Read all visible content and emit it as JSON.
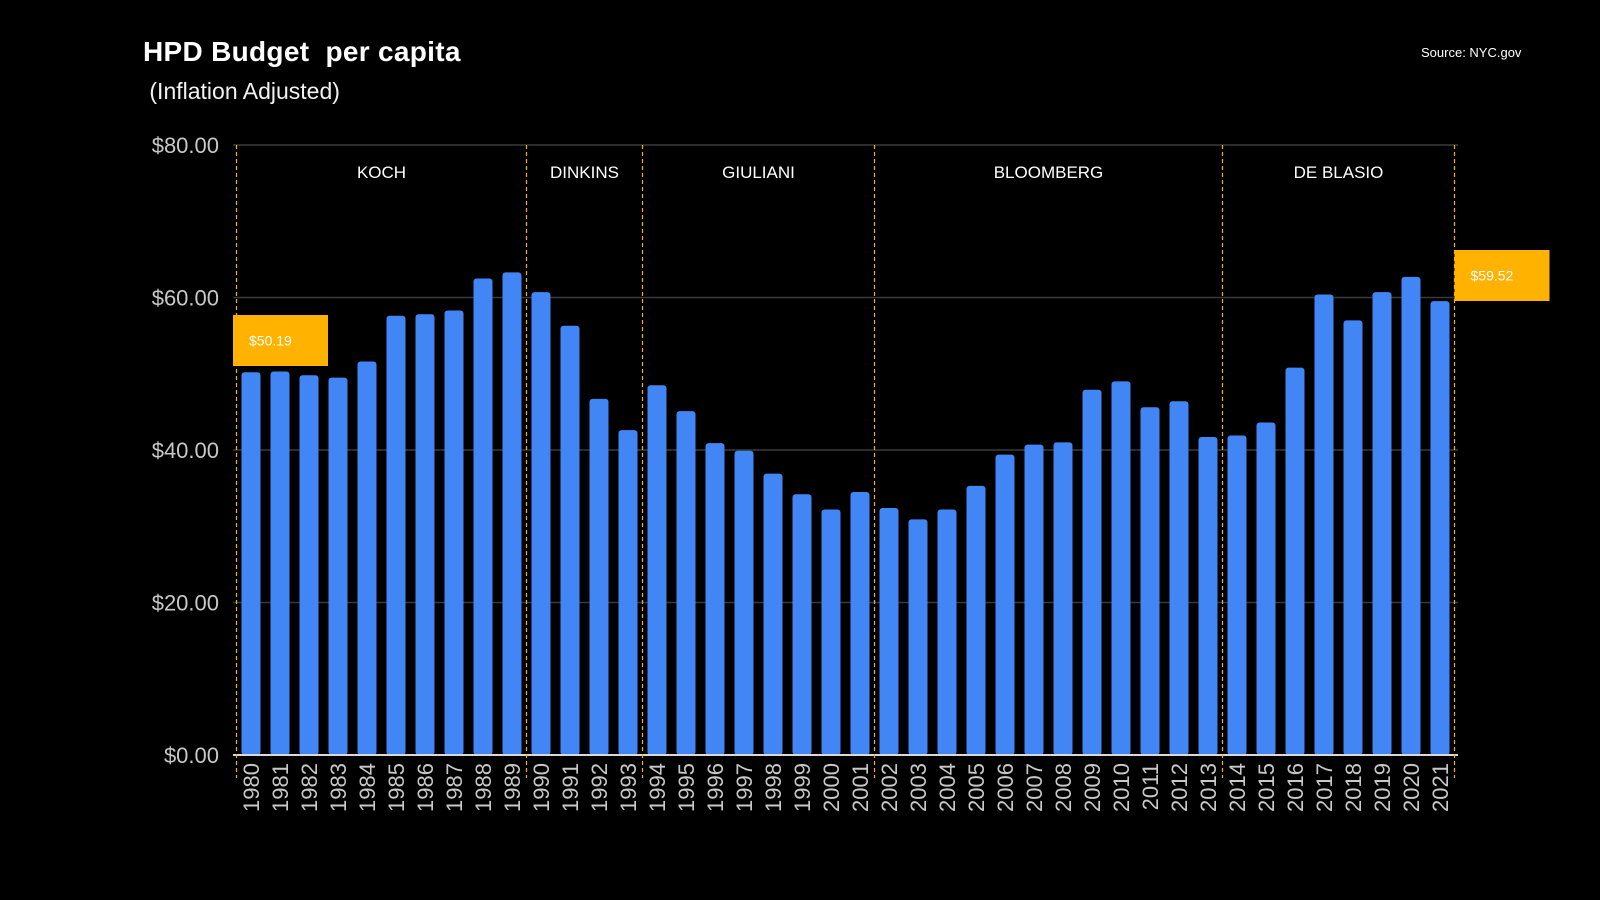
{
  "title": "HPD Budget  per capita",
  "subtitle": " (Inflation Adjusted)",
  "source": "Source: NYC.gov",
  "colors": {
    "bar": "#4285f4",
    "callout": "#ffb300",
    "divider": "#f4b400",
    "grid": "#3a3a3a",
    "axis": "#d9d9d9",
    "tick": "#c8c8c8",
    "background": "#000000"
  },
  "chart_data": {
    "type": "bar",
    "title": "HPD Budget  per capita",
    "subtitle": " (Inflation Adjusted)",
    "xlabel": "",
    "ylabel": "",
    "ylim": [
      0,
      80
    ],
    "y_ticks": [
      "$0.00",
      "$20.00",
      "$40.00",
      "$60.00",
      "$80.00"
    ],
    "y_tick_values": [
      0,
      20,
      40,
      60,
      80
    ],
    "grid": true,
    "categories": [
      "1980",
      "1981",
      "1982",
      "1983",
      "1984",
      "1985",
      "1986",
      "1987",
      "1988",
      "1989",
      "1990",
      "1991",
      "1992",
      "1993",
      "1994",
      "1995",
      "1996",
      "1997",
      "1998",
      "1999",
      "2000",
      "2001",
      "2002",
      "2003",
      "2004",
      "2005",
      "2006",
      "2007",
      "2008",
      "2009",
      "2010",
      "2011",
      "2012",
      "2013",
      "2014",
      "2015",
      "2016",
      "2017",
      "2018",
      "2019",
      "2020",
      "2021"
    ],
    "series": [
      {
        "values": [
          50.19,
          50.3,
          49.8,
          49.5,
          51.6,
          57.6,
          57.8,
          58.3,
          62.5,
          63.3,
          60.7,
          56.3,
          46.7,
          42.6,
          48.5,
          45.1,
          40.9,
          39.9,
          36.9,
          34.2,
          32.2,
          34.5,
          32.4,
          30.9,
          32.2,
          35.3,
          39.4,
          40.7,
          41.0,
          47.9,
          49.0,
          45.6,
          46.4,
          41.7,
          41.9,
          43.6,
          50.8,
          60.4,
          57.0,
          60.7,
          62.7,
          59.52
        ]
      }
    ],
    "annotations": [
      {
        "text": "$50.19",
        "category": "1980",
        "value": 50.19
      },
      {
        "text": "$59.52",
        "category": "2021",
        "value": 59.52
      }
    ],
    "periods": [
      {
        "label": "KOCH",
        "start": "1980",
        "end": "1989"
      },
      {
        "label": "DINKINS",
        "start": "1990",
        "end": "1993"
      },
      {
        "label": "GIULIANI",
        "start": "1994",
        "end": "2001"
      },
      {
        "label": "BLOOMBERG",
        "start": "2002",
        "end": "2013"
      },
      {
        "label": "DE BLASIO",
        "start": "2014",
        "end": "2021"
      }
    ]
  }
}
